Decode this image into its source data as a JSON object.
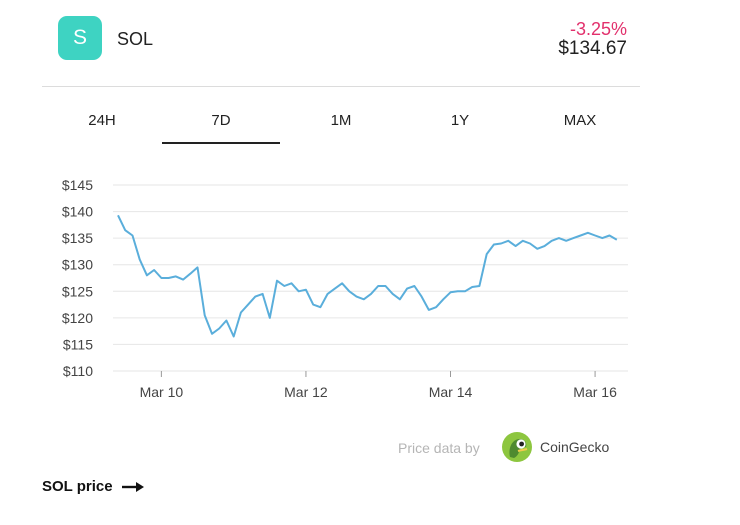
{
  "coin": {
    "badge_letter": "S",
    "symbol": "SOL",
    "change": "-3.25%",
    "price": "$134.67",
    "badge_color": "#3ed3c2",
    "change_color": "#e2306c",
    "line_color": "#5aaedb"
  },
  "tabs": [
    {
      "label": "24H"
    },
    {
      "label": "7D",
      "selected": true
    },
    {
      "label": "1M"
    },
    {
      "label": "1Y"
    },
    {
      "label": "MAX"
    }
  ],
  "chart_data": {
    "type": "line",
    "ylim": [
      110,
      145
    ],
    "y_ticks": [
      "$145",
      "$140",
      "$135",
      "$130",
      "$125",
      "$120",
      "$115",
      "$110"
    ],
    "y_tick_values": [
      145,
      140,
      135,
      130,
      125,
      120,
      115,
      110
    ],
    "x_ticks": [
      "Mar 10",
      "Mar 12",
      "Mar 14",
      "Mar 16"
    ],
    "x_tick_days": [
      10,
      12,
      14,
      16
    ],
    "xlim": [
      9.4,
      16.4
    ],
    "grid": true,
    "series": [
      {
        "x": [
          9.4,
          9.5,
          9.6,
          9.7,
          9.8,
          9.9,
          10.0,
          10.1,
          10.2,
          10.3,
          10.4,
          10.5,
          10.6,
          10.7,
          10.8,
          10.9,
          11.0,
          11.1,
          11.2,
          11.3,
          11.4,
          11.5,
          11.6,
          11.7,
          11.8,
          11.9,
          12.0,
          12.1,
          12.2,
          12.3,
          12.4,
          12.5,
          12.6,
          12.7,
          12.8,
          12.9,
          13.0,
          13.1,
          13.2,
          13.3,
          13.4,
          13.5,
          13.6,
          13.7,
          13.8,
          13.9,
          14.0,
          14.1,
          14.2,
          14.3,
          14.4,
          14.5,
          14.6,
          14.7,
          14.8,
          14.9,
          15.0,
          15.1,
          15.2,
          15.3,
          15.4,
          15.5,
          15.6,
          15.7,
          15.8,
          15.9,
          16.0,
          16.1,
          16.2,
          16.3
        ],
        "values": [
          139.3,
          136.5,
          135.5,
          131.0,
          128.0,
          129.0,
          127.5,
          127.5,
          127.8,
          127.2,
          128.3,
          129.5,
          120.5,
          117.0,
          118.0,
          119.5,
          116.5,
          121.0,
          122.5,
          124.0,
          124.5,
          120.0,
          127.0,
          126.0,
          126.5,
          125.0,
          125.3,
          122.5,
          122.0,
          124.5,
          125.5,
          126.5,
          125.0,
          124.0,
          123.5,
          124.5,
          126.0,
          126.0,
          124.5,
          123.5,
          125.5,
          126.0,
          124.0,
          121.5,
          122.0,
          123.5,
          124.8,
          125.0,
          125.0,
          125.8,
          126.0,
          132.0,
          133.8,
          134.0,
          134.5,
          133.5,
          134.5,
          134.0,
          133.0,
          133.5,
          134.5,
          135.0,
          134.5,
          135.0,
          135.5,
          136.0,
          135.5,
          135.0,
          135.5,
          134.7
        ]
      }
    ]
  },
  "attribution": {
    "prefix": "Price data by",
    "brand": "CoinGecko"
  },
  "footer": {
    "link_label": "SOL price"
  }
}
